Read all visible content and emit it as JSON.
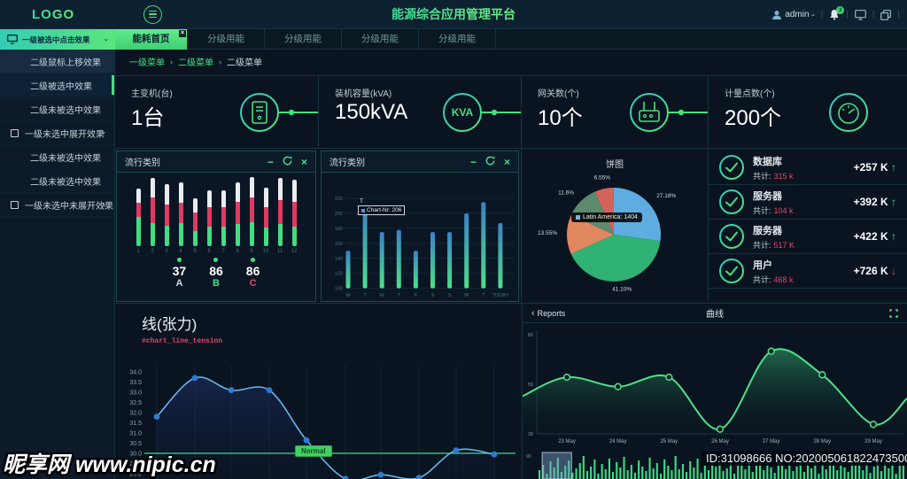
{
  "header": {
    "logo": "LOGO",
    "title": "能源综合应用管理平台",
    "user_label": "admin",
    "bell_badge": "3"
  },
  "nav": {
    "sidebar_header": "一级被选中点击效果",
    "tabs": [
      "能耗首页",
      "分级用能",
      "分级用能",
      "分级用能",
      "分级用能"
    ],
    "active_tab_index": 0
  },
  "sidebar": [
    "二级鼠标上移效果",
    "二级被选中效果",
    "二级未被选中效果",
    "一级未选中展开效果",
    "二级未被选中效果",
    "二级未被选中效果",
    "一级未选中未展开效果"
  ],
  "breadcrumb": {
    "items": [
      "一级菜单",
      "二级菜单",
      "二级菜单"
    ],
    "separator": "›"
  },
  "kpis": [
    {
      "label": "主变机(台)",
      "value": "1台",
      "icon": "cabinet-icon"
    },
    {
      "label": "装机容量(kVA)",
      "value": "150kVA",
      "icon": "kva-icon"
    },
    {
      "label": "网关数(个)",
      "value": "10个",
      "icon": "gateway-icon"
    },
    {
      "label": "计量点数(个)",
      "value": "200个",
      "icon": "meter-icon"
    }
  ],
  "panels": {
    "bar1_title": "流行类别",
    "bar2_title": "流行类别",
    "pie_title": "饼图",
    "tension_title": "线(张力)",
    "tension_subtitle": "#chart_line_tension",
    "tension_badge": "Normal",
    "reports_back": "Reports",
    "reports_title": "曲线"
  },
  "bar1_stats": [
    {
      "value": "37",
      "label": "A"
    },
    {
      "value": "86",
      "label": "B"
    },
    {
      "value": "86",
      "label": "C"
    }
  ],
  "stats_list": [
    {
      "title": "数据库",
      "total_label": "共计:",
      "total": "315 k",
      "delta": "+257 K",
      "arrow": "↑",
      "dir": "up"
    },
    {
      "title": "服务器",
      "total_label": "共计:",
      "total": "104 k",
      "delta": "+392 K",
      "arrow": "↑",
      "dir": "up"
    },
    {
      "title": "服务器",
      "total_label": "共计:",
      "total": "517 K",
      "delta": "+422 K",
      "arrow": "↑",
      "dir": "up"
    },
    {
      "title": "用户",
      "total_label": "共计:",
      "total": "468 k",
      "delta": "+726 K",
      "arrow": "↓",
      "dir": "down"
    }
  ],
  "tooltips": {
    "bar2_label": "T",
    "bar2_text": "Chart-Nr: 206",
    "pie_text": "Latin America: 1404"
  },
  "watermark": {
    "site": "昵享网 www.nipic.cn",
    "stamp": "ID:31098666 NO:20200506182247350031"
  },
  "colors": {
    "accent_green": "#45e07f",
    "accent_cyan": "#2fc9c2",
    "alert_red": "#e5446b",
    "bar_white": "#e9edf0",
    "line_blue": "#69b4ea",
    "area_green": "#4ee08a"
  },
  "chart_data": [
    {
      "id": "category-stacked-bars",
      "type": "bar",
      "title": "流行类别",
      "categories": [
        "1",
        "2",
        "3",
        "4",
        "5",
        "6",
        "7",
        "8",
        "9",
        "10",
        "11",
        "12"
      ],
      "series": [
        {
          "name": "green",
          "values": [
            31,
            25,
            22,
            25,
            16,
            21,
            21,
            24,
            26,
            20,
            24,
            21
          ]
        },
        {
          "name": "red",
          "values": [
            16,
            27,
            23,
            22,
            20,
            21,
            21,
            24,
            26,
            22,
            26,
            27
          ]
        },
        {
          "name": "white",
          "values": [
            15,
            21,
            22,
            22,
            15,
            18,
            18,
            21,
            22,
            21,
            23,
            23
          ]
        }
      ],
      "footer_stats": [
        {
          "value": 37,
          "label": "A"
        },
        {
          "value": 86,
          "label": "B"
        },
        {
          "value": 86,
          "label": "C"
        }
      ]
    },
    {
      "id": "weekly-bars",
      "type": "bar",
      "title": "流行类别",
      "categories": [
        "W",
        "T",
        "W",
        "T",
        "F",
        "S",
        "S",
        "W",
        "T",
        "TODAY"
      ],
      "values": [
        150,
        205,
        175,
        178,
        150,
        175,
        175,
        200,
        215,
        187
      ],
      "ylim": [
        100,
        220
      ],
      "yticks": [
        100,
        120,
        140,
        160,
        180,
        200,
        220
      ],
      "tooltip": {
        "category": "T",
        "text": "Chart-Nr: 206"
      }
    },
    {
      "id": "pie",
      "type": "pie",
      "title": "饼图",
      "slices": [
        {
          "label": "27.18%",
          "value": 27.18,
          "color": "#5fade0"
        },
        {
          "label": "41.10%",
          "value": 41.1,
          "color": "#2fb273"
        },
        {
          "label": "13.55%",
          "value": 13.55,
          "color": "#e0875f"
        },
        {
          "label": "11.6%",
          "value": 11.6,
          "color": "#5d8a6e"
        },
        {
          "label": "6.55%",
          "value": 6.55,
          "color": "#d4635c"
        }
      ],
      "tooltip": "Latin America: 1404"
    },
    {
      "id": "tension-line",
      "type": "line",
      "title": "线(张力)",
      "subtitle": "#chart_line_tension",
      "yticks": [
        34.0,
        33.5,
        33.0,
        32.5,
        32.0,
        31.5,
        31.0,
        30.5,
        30.0,
        29.5,
        29.0
      ],
      "values": [
        31.8,
        33.7,
        33.1,
        33.1,
        30.65,
        28.75,
        28.95,
        28.8,
        30.15,
        29.95
      ],
      "normal_line": 30.0,
      "ylim": [
        29.0,
        34.0
      ]
    },
    {
      "id": "reports-curve",
      "type": "area",
      "title": "曲线",
      "x_labels": [
        "23 May",
        "24 May",
        "25 May",
        "26 May",
        "27 May",
        "28 May",
        "29 May"
      ],
      "values": [
        62,
        58,
        62,
        40,
        73,
        63,
        42
      ],
      "edge_start": 54,
      "edge_end": 53,
      "yticks": [
        80,
        59,
        38
      ],
      "ylim": [
        38,
        80
      ]
    },
    {
      "id": "mini-bars",
      "type": "bar",
      "ytick": "90",
      "selection": [
        1,
        9
      ],
      "values": [
        10,
        16,
        6,
        20,
        13,
        24,
        8,
        15,
        21,
        7,
        12,
        18,
        26,
        9,
        14,
        22,
        6,
        17,
        11,
        23,
        8,
        19,
        13,
        25,
        10,
        16,
        7,
        21,
        14,
        9,
        24,
        12,
        18,
        6,
        22,
        15,
        10,
        26,
        11,
        17,
        8,
        20,
        13,
        23,
        7,
        16,
        10,
        25,
        14,
        19,
        9,
        12,
        22,
        6,
        17,
        26,
        11,
        21,
        8,
        15,
        23,
        10,
        18,
        13,
        7,
        24,
        16,
        11,
        20,
        9,
        14,
        25,
        8,
        19,
        12,
        22,
        6,
        17,
        11,
        26,
        15,
        10,
        23,
        13,
        8,
        20,
        16,
        24,
        10,
        18,
        7,
        14,
        21,
        9,
        25,
        12,
        17,
        6,
        22,
        15
      ]
    }
  ]
}
